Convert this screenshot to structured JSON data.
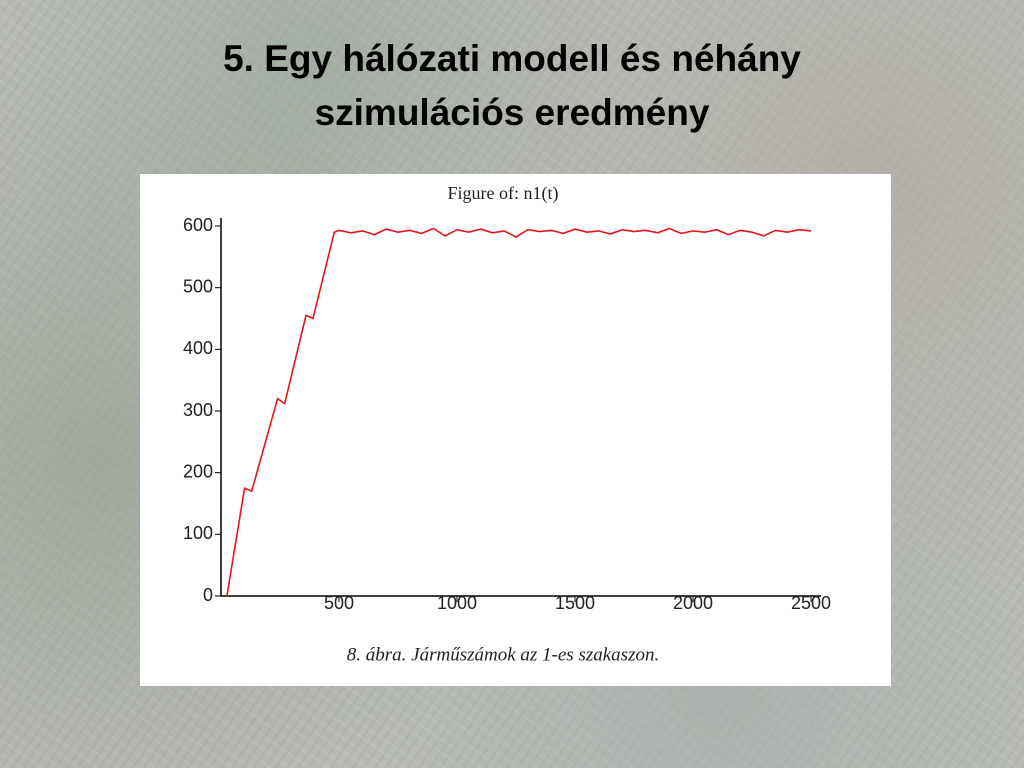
{
  "slide": {
    "title": [
      "5. Egy hálózati modell és néhány",
      "szimulációs eredmény"
    ]
  },
  "chart_data": {
    "type": "line",
    "title": "Figure of: n1(t)",
    "caption": "8. ábra. Járműszámok az 1-es szakaszon.",
    "x": [
      25,
      100,
      130,
      240,
      270,
      360,
      390,
      480,
      500,
      550,
      600,
      650,
      700,
      750,
      800,
      850,
      900,
      950,
      1000,
      1050,
      1100,
      1150,
      1200,
      1250,
      1300,
      1350,
      1400,
      1450,
      1500,
      1550,
      1600,
      1650,
      1700,
      1750,
      1800,
      1850,
      1900,
      1950,
      2000,
      2050,
      2100,
      2150,
      2200,
      2250,
      2300,
      2350,
      2400,
      2450,
      2500
    ],
    "y": [
      0,
      175,
      170,
      320,
      312,
      455,
      450,
      590,
      593,
      589,
      592,
      586,
      595,
      590,
      593,
      588,
      596,
      584,
      594,
      590,
      595,
      589,
      592,
      582,
      594,
      591,
      593,
      588,
      595,
      590,
      592,
      587,
      594,
      591,
      593,
      589,
      596,
      588,
      592,
      590,
      594,
      586,
      593,
      590,
      584,
      593,
      590,
      594,
      592
    ],
    "color": "#e8141b",
    "xlim": [
      0,
      2500
    ],
    "ylim": [
      0,
      600
    ],
    "xticks": [
      500,
      1000,
      1500,
      2000,
      2500
    ],
    "yticks": [
      0,
      100,
      200,
      300,
      400,
      500,
      600
    ]
  }
}
